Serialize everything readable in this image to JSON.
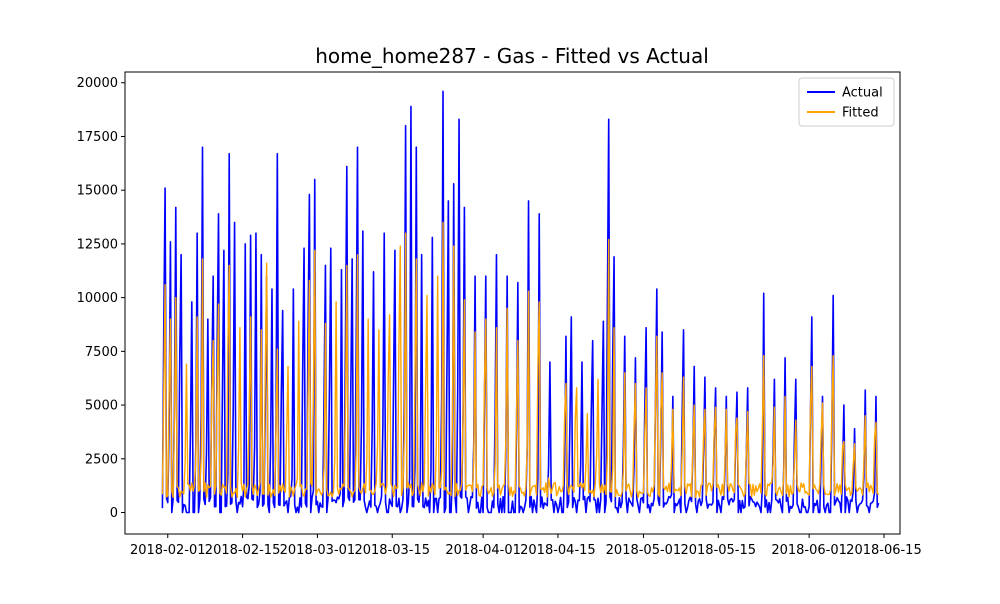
{
  "chart_data": {
    "type": "line",
    "title": "home_home287 - Gas - Fitted vs Actual",
    "xlabel": "",
    "ylabel": "",
    "x_range": [
      "2018-01-24",
      "2018-06-18"
    ],
    "data_x_range": [
      "2018-01-31",
      "2018-06-14"
    ],
    "ylim": [
      -1000,
      20500
    ],
    "x_tick_labels": [
      "2018-02-01",
      "2018-02-15",
      "2018-03-01",
      "2018-03-15",
      "2018-04-01",
      "2018-04-15",
      "2018-05-01",
      "2018-05-15",
      "2018-06-01",
      "2018-06-15"
    ],
    "y_ticks": [
      0,
      2500,
      5000,
      7500,
      10000,
      12500,
      15000,
      17500,
      20000
    ],
    "grid": false,
    "legend_position": "upper right",
    "series": [
      {
        "name": "Actual",
        "color": "#0000ff",
        "baseline_low": 0,
        "baseline_high": 750,
        "peaks": [
          [
            "2018-01-31",
            15100
          ],
          [
            "2018-02-01",
            12600
          ],
          [
            "2018-02-02",
            14200
          ],
          [
            "2018-02-03",
            12000
          ],
          [
            "2018-02-05",
            9800
          ],
          [
            "2018-02-06",
            13000
          ],
          [
            "2018-02-07",
            17000
          ],
          [
            "2018-02-08",
            9000
          ],
          [
            "2018-02-09",
            11000
          ],
          [
            "2018-02-10",
            13900
          ],
          [
            "2018-02-11",
            12200
          ],
          [
            "2018-02-12",
            16700
          ],
          [
            "2018-02-13",
            13500
          ],
          [
            "2018-02-15",
            12500
          ],
          [
            "2018-02-16",
            12900
          ],
          [
            "2018-02-17",
            13000
          ],
          [
            "2018-02-18",
            12000
          ],
          [
            "2018-02-19",
            11000
          ],
          [
            "2018-02-20",
            10400
          ],
          [
            "2018-02-21",
            16700
          ],
          [
            "2018-02-22",
            9400
          ],
          [
            "2018-02-24",
            10400
          ],
          [
            "2018-02-26",
            12300
          ],
          [
            "2018-02-27",
            14800
          ],
          [
            "2018-02-28",
            15500
          ],
          [
            "2018-03-02",
            11500
          ],
          [
            "2018-03-03",
            12300
          ],
          [
            "2018-03-05",
            11300
          ],
          [
            "2018-03-06",
            16100
          ],
          [
            "2018-03-07",
            11800
          ],
          [
            "2018-03-08",
            17000
          ],
          [
            "2018-03-09",
            13100
          ],
          [
            "2018-03-11",
            11200
          ],
          [
            "2018-03-13",
            13000
          ],
          [
            "2018-03-15",
            12200
          ],
          [
            "2018-03-17",
            18000
          ],
          [
            "2018-03-18",
            18900
          ],
          [
            "2018-03-19",
            17000
          ],
          [
            "2018-03-20",
            12000
          ],
          [
            "2018-03-22",
            12800
          ],
          [
            "2018-03-24",
            19600
          ],
          [
            "2018-03-25",
            14500
          ],
          [
            "2018-03-26",
            15300
          ],
          [
            "2018-03-27",
            18300
          ],
          [
            "2018-03-28",
            14200
          ],
          [
            "2018-03-30",
            11000
          ],
          [
            "2018-04-01",
            11000
          ],
          [
            "2018-04-03",
            12000
          ],
          [
            "2018-04-05",
            11000
          ],
          [
            "2018-04-07",
            10700
          ],
          [
            "2018-04-09",
            14500
          ],
          [
            "2018-04-11",
            13900
          ],
          [
            "2018-04-13",
            7000
          ],
          [
            "2018-04-16",
            8200
          ],
          [
            "2018-04-17",
            9100
          ],
          [
            "2018-04-19",
            7000
          ],
          [
            "2018-04-21",
            8000
          ],
          [
            "2018-04-23",
            8900
          ],
          [
            "2018-04-24",
            18300
          ],
          [
            "2018-04-25",
            11900
          ],
          [
            "2018-04-27",
            8200
          ],
          [
            "2018-04-29",
            7200
          ],
          [
            "2018-05-01",
            8600
          ],
          [
            "2018-05-03",
            10400
          ],
          [
            "2018-05-04",
            8400
          ],
          [
            "2018-05-06",
            5400
          ],
          [
            "2018-05-08",
            8500
          ],
          [
            "2018-05-10",
            6800
          ],
          [
            "2018-05-12",
            6300
          ],
          [
            "2018-05-14",
            5800
          ],
          [
            "2018-05-16",
            5400
          ],
          [
            "2018-05-18",
            5600
          ],
          [
            "2018-05-20",
            5800
          ],
          [
            "2018-05-23",
            10200
          ],
          [
            "2018-05-25",
            6200
          ],
          [
            "2018-05-27",
            7200
          ],
          [
            "2018-05-29",
            6200
          ],
          [
            "2018-06-01",
            9100
          ],
          [
            "2018-06-03",
            5400
          ],
          [
            "2018-06-05",
            10100
          ],
          [
            "2018-06-07",
            5000
          ],
          [
            "2018-06-09",
            3900
          ],
          [
            "2018-06-11",
            5700
          ],
          [
            "2018-06-13",
            5400
          ]
        ]
      },
      {
        "name": "Fitted",
        "color": "#ffa500",
        "baseline_low": 700,
        "baseline_high": 1400,
        "peaks": [
          [
            "2018-01-31",
            10600
          ],
          [
            "2018-02-01",
            9000
          ],
          [
            "2018-02-02",
            10000
          ],
          [
            "2018-02-04",
            6900
          ],
          [
            "2018-02-06",
            9100
          ],
          [
            "2018-02-07",
            11800
          ],
          [
            "2018-02-09",
            8000
          ],
          [
            "2018-02-10",
            9700
          ],
          [
            "2018-02-12",
            11500
          ],
          [
            "2018-02-14",
            8600
          ],
          [
            "2018-02-16",
            9100
          ],
          [
            "2018-02-18",
            8500
          ],
          [
            "2018-02-19",
            11600
          ],
          [
            "2018-02-21",
            7600
          ],
          [
            "2018-02-23",
            6800
          ],
          [
            "2018-02-25",
            8900
          ],
          [
            "2018-02-27",
            10800
          ],
          [
            "2018-02-28",
            12200
          ],
          [
            "2018-03-02",
            8800
          ],
          [
            "2018-03-04",
            9800
          ],
          [
            "2018-03-06",
            11500
          ],
          [
            "2018-03-08",
            12000
          ],
          [
            "2018-03-10",
            9000
          ],
          [
            "2018-03-12",
            8500
          ],
          [
            "2018-03-14",
            9200
          ],
          [
            "2018-03-16",
            12400
          ],
          [
            "2018-03-17",
            13000
          ],
          [
            "2018-03-19",
            11800
          ],
          [
            "2018-03-21",
            10100
          ],
          [
            "2018-03-23",
            11000
          ],
          [
            "2018-03-24",
            13500
          ],
          [
            "2018-03-26",
            12400
          ],
          [
            "2018-03-28",
            9900
          ],
          [
            "2018-03-30",
            8400
          ],
          [
            "2018-04-01",
            9000
          ],
          [
            "2018-04-03",
            8600
          ],
          [
            "2018-04-05",
            9500
          ],
          [
            "2018-04-07",
            8000
          ],
          [
            "2018-04-09",
            10300
          ],
          [
            "2018-04-11",
            9800
          ],
          [
            "2018-04-13",
            1200
          ],
          [
            "2018-04-16",
            6000
          ],
          [
            "2018-04-18",
            5800
          ],
          [
            "2018-04-20",
            4600
          ],
          [
            "2018-04-22",
            6200
          ],
          [
            "2018-04-24",
            12700
          ],
          [
            "2018-04-25",
            8600
          ],
          [
            "2018-04-27",
            6500
          ],
          [
            "2018-04-29",
            6000
          ],
          [
            "2018-05-01",
            5800
          ],
          [
            "2018-05-03",
            8200
          ],
          [
            "2018-05-04",
            6500
          ],
          [
            "2018-05-06",
            4800
          ],
          [
            "2018-05-08",
            6300
          ],
          [
            "2018-05-10",
            5000
          ],
          [
            "2018-05-12",
            4800
          ],
          [
            "2018-05-14",
            4900
          ],
          [
            "2018-05-16",
            4800
          ],
          [
            "2018-05-18",
            4400
          ],
          [
            "2018-05-20",
            4700
          ],
          [
            "2018-05-23",
            7300
          ],
          [
            "2018-05-25",
            4900
          ],
          [
            "2018-05-27",
            5400
          ],
          [
            "2018-05-29",
            4300
          ],
          [
            "2018-06-01",
            6800
          ],
          [
            "2018-06-03",
            5100
          ],
          [
            "2018-06-05",
            7300
          ],
          [
            "2018-06-07",
            3300
          ],
          [
            "2018-06-09",
            3200
          ],
          [
            "2018-06-11",
            4500
          ],
          [
            "2018-06-13",
            4200
          ]
        ]
      }
    ]
  }
}
